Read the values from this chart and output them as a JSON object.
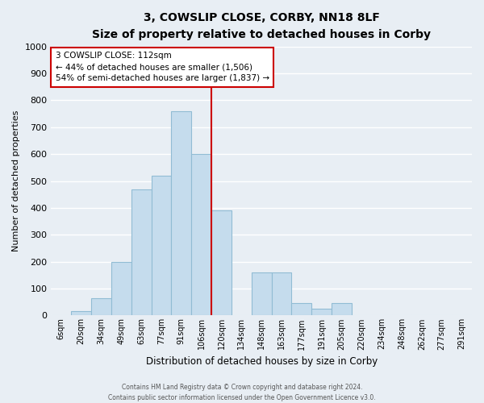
{
  "title": "3, COWSLIP CLOSE, CORBY, NN18 8LF",
  "subtitle": "Size of property relative to detached houses in Corby",
  "xlabel": "Distribution of detached houses by size in Corby",
  "ylabel": "Number of detached properties",
  "bar_labels": [
    "6sqm",
    "20sqm",
    "34sqm",
    "49sqm",
    "63sqm",
    "77sqm",
    "91sqm",
    "106sqm",
    "120sqm",
    "134sqm",
    "148sqm",
    "163sqm",
    "177sqm",
    "191sqm",
    "205sqm",
    "220sqm",
    "234sqm",
    "248sqm",
    "262sqm",
    "277sqm",
    "291sqm"
  ],
  "bar_heights": [
    0,
    15,
    65,
    200,
    470,
    520,
    760,
    600,
    390,
    0,
    160,
    160,
    45,
    25,
    45,
    0,
    0,
    0,
    0,
    0,
    0
  ],
  "bar_color": "#c5dced",
  "bar_edge_color": "#91bcd4",
  "vline_index": 7,
  "vline_color": "#cc0000",
  "ylim": [
    0,
    1000
  ],
  "yticks": [
    0,
    100,
    200,
    300,
    400,
    500,
    600,
    700,
    800,
    900,
    1000
  ],
  "annotation_title": "3 COWSLIP CLOSE: 112sqm",
  "annotation_line1": "← 44% of detached houses are smaller (1,506)",
  "annotation_line2": "54% of semi-detached houses are larger (1,837) →",
  "annotation_box_facecolor": "#ffffff",
  "annotation_box_edgecolor": "#cc0000",
  "footer1": "Contains HM Land Registry data © Crown copyright and database right 2024.",
  "footer2": "Contains public sector information licensed under the Open Government Licence v3.0.",
  "bg_color": "#e8eef4",
  "grid_color": "#ffffff",
  "title_fontsize": 10,
  "subtitle_fontsize": 8.5
}
